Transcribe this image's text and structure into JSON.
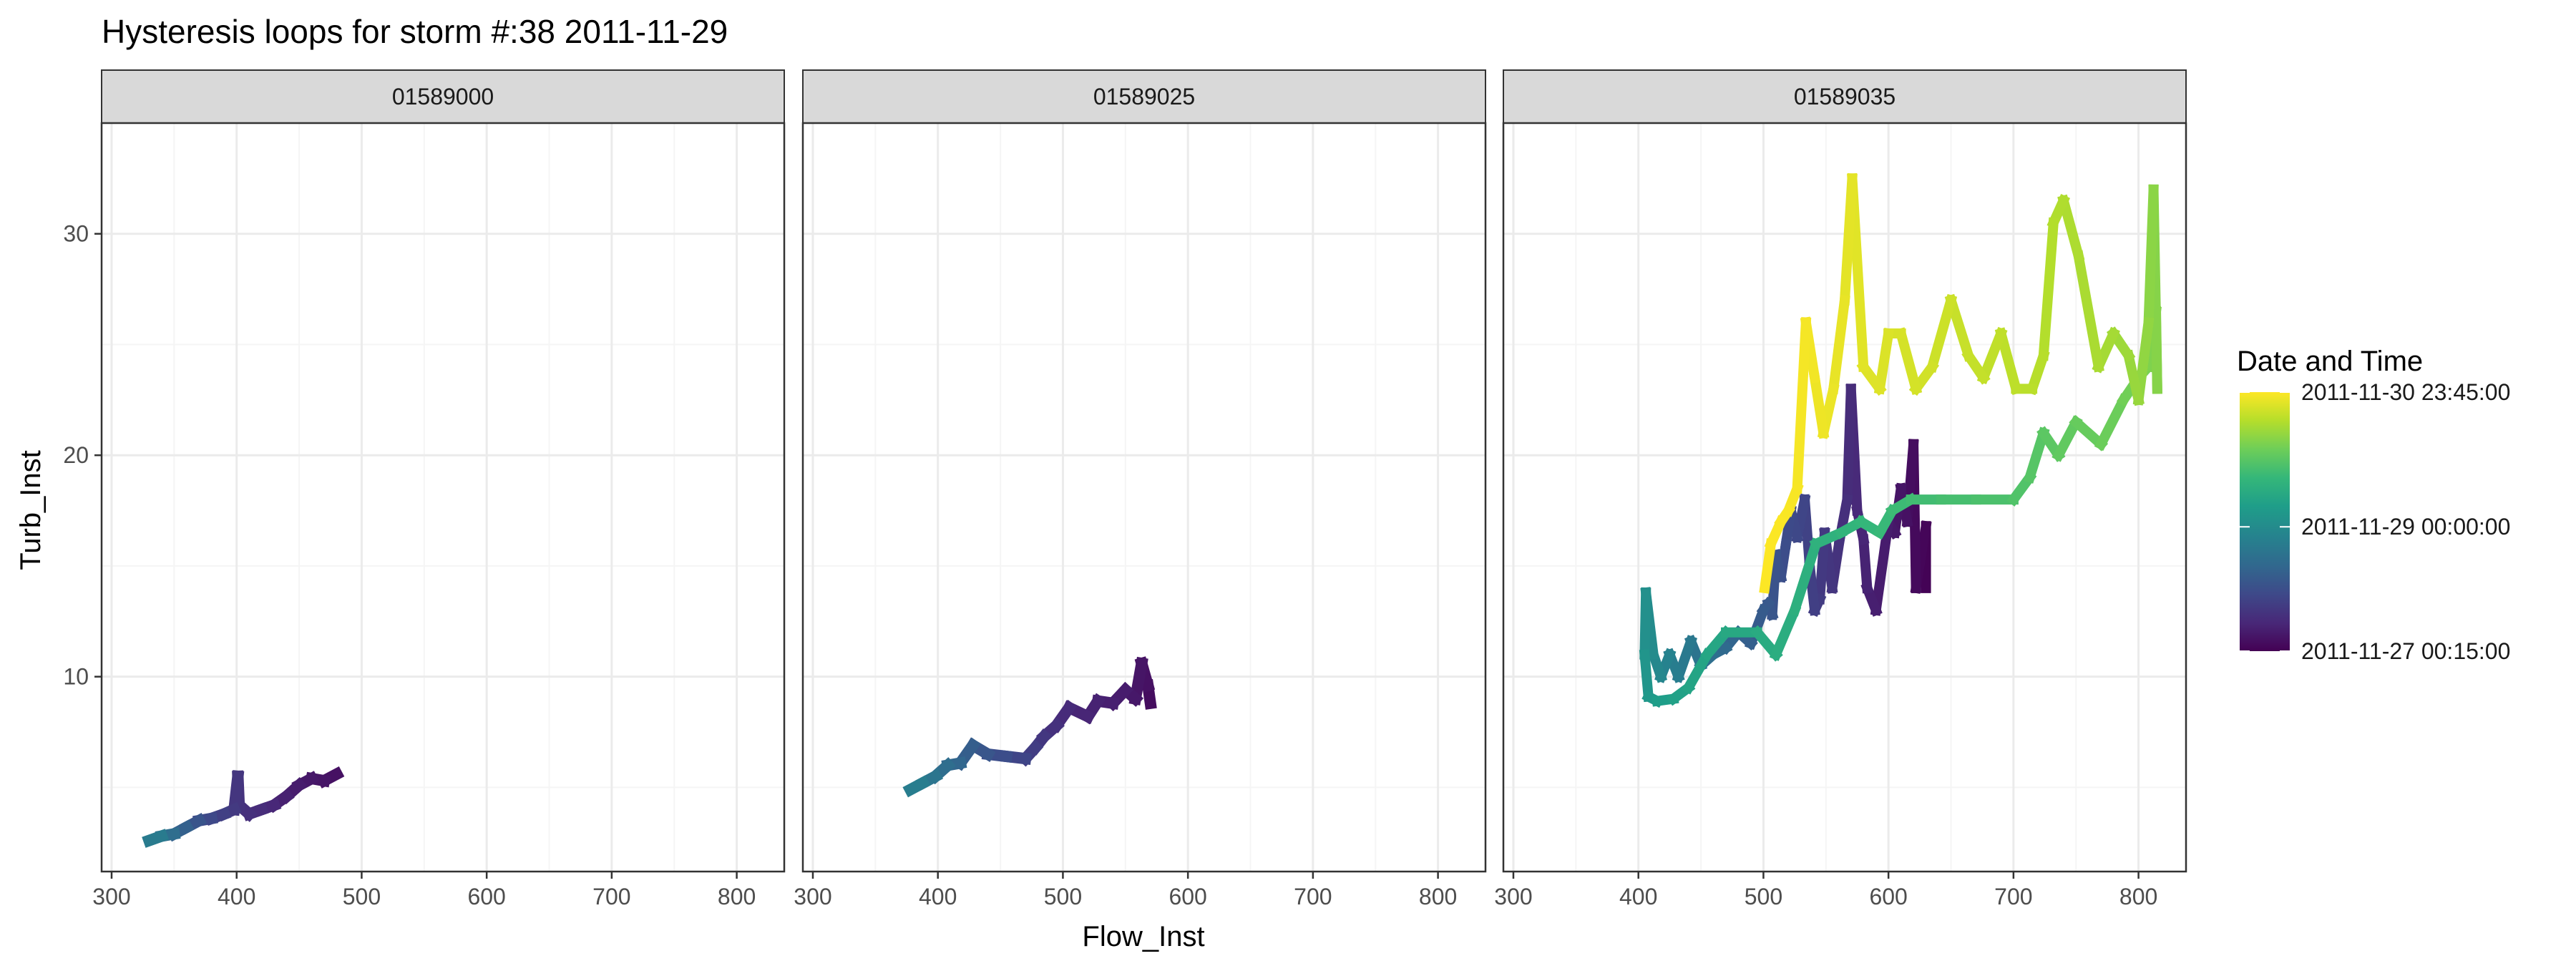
{
  "chart_data": {
    "type": "line",
    "title": "Hysteresis loops for storm #:38   2011-11-29",
    "xlabel": "Flow_Inst",
    "ylabel": "Turb_Inst",
    "xlim": [
      292,
      838
    ],
    "ylim": [
      1.2,
      35
    ],
    "x_ticks": [
      300,
      400,
      500,
      600,
      700,
      800
    ],
    "y_ticks": [
      10,
      20,
      30
    ],
    "grid": true,
    "colors": {
      "strip_fill": "#d9d9d9",
      "panel_border": "#333333",
      "grid_major": "#ebebeb",
      "grid_minor": "#f5f5f5"
    },
    "legend": {
      "title": "Date and Time",
      "position": "right",
      "labels": [
        "2011-11-30 23:45:00",
        "2011-11-29 00:00:00",
        "2011-11-27 00:15:00"
      ],
      "values": [
        1,
        0.48,
        0
      ],
      "colormap": "viridis"
    },
    "panels": [
      {
        "label": "01589000",
        "points": [
          [
            480,
            5.6,
            0.04
          ],
          [
            470,
            5.3,
            0.05
          ],
          [
            460,
            5.4,
            0.06
          ],
          [
            450,
            5.1,
            0.07
          ],
          [
            440,
            4.6,
            0.08
          ],
          [
            430,
            4.2,
            0.1
          ],
          [
            420,
            4.0,
            0.12
          ],
          [
            410,
            3.8,
            0.13
          ],
          [
            402,
            4.2,
            0.14
          ],
          [
            401,
            5.5,
            0.15
          ],
          [
            398,
            4.0,
            0.16
          ],
          [
            390,
            3.8,
            0.18
          ],
          [
            380,
            3.6,
            0.2
          ],
          [
            370,
            3.5,
            0.24
          ],
          [
            360,
            3.2,
            0.28
          ],
          [
            350,
            2.9,
            0.33
          ],
          [
            340,
            2.8,
            0.38
          ],
          [
            330,
            2.6,
            0.44
          ]
        ]
      },
      {
        "label": "01589025",
        "points": [
          [
            570,
            8.8,
            0.03
          ],
          [
            568,
            9.6,
            0.04
          ],
          [
            563,
            10.6,
            0.05
          ],
          [
            558,
            9.0,
            0.06
          ],
          [
            550,
            9.4,
            0.07
          ],
          [
            540,
            8.8,
            0.08
          ],
          [
            528,
            8.9,
            0.09
          ],
          [
            520,
            8.2,
            0.1
          ],
          [
            505,
            8.6,
            0.11
          ],
          [
            495,
            7.8,
            0.13
          ],
          [
            485,
            7.3,
            0.15
          ],
          [
            478,
            6.8,
            0.17
          ],
          [
            470,
            6.3,
            0.19
          ],
          [
            455,
            6.4,
            0.22
          ],
          [
            440,
            6.5,
            0.25
          ],
          [
            428,
            6.9,
            0.28
          ],
          [
            418,
            6.1,
            0.31
          ],
          [
            408,
            6.0,
            0.34
          ],
          [
            398,
            5.5,
            0.37
          ],
          [
            388,
            5.2,
            0.4
          ],
          [
            378,
            4.9,
            0.44
          ]
        ]
      },
      {
        "label": "01589035",
        "points": [
          [
            630,
            14.0,
            0.0
          ],
          [
            630,
            16.8,
            0.01
          ],
          [
            622,
            14.0,
            0.02
          ],
          [
            620,
            20.5,
            0.03
          ],
          [
            615,
            17.0,
            0.04
          ],
          [
            610,
            18.5,
            0.05
          ],
          [
            605,
            16.5,
            0.06
          ],
          [
            600,
            17.0,
            0.07
          ],
          [
            590,
            13.0,
            0.08
          ],
          [
            583,
            14.0,
            0.09
          ],
          [
            580,
            16.2,
            0.1
          ],
          [
            575,
            17.5,
            0.11
          ],
          [
            570,
            23.0,
            0.12
          ],
          [
            567,
            18.0,
            0.13
          ],
          [
            561,
            16.2,
            0.14
          ],
          [
            555,
            14.0,
            0.15
          ],
          [
            549,
            16.5,
            0.16
          ],
          [
            545,
            13.5,
            0.17
          ],
          [
            541,
            13.0,
            0.18
          ],
          [
            537,
            15.0,
            0.19
          ],
          [
            533,
            18.0,
            0.2
          ],
          [
            527,
            16.3,
            0.21
          ],
          [
            522,
            17.5,
            0.22
          ],
          [
            518,
            16.0,
            0.23
          ],
          [
            514,
            14.5,
            0.24
          ],
          [
            510,
            15.5,
            0.25
          ],
          [
            507,
            12.8,
            0.26
          ],
          [
            504,
            13.3,
            0.27
          ],
          [
            500,
            13.0,
            0.28
          ],
          [
            490,
            11.5,
            0.29
          ],
          [
            480,
            12.0,
            0.31
          ],
          [
            470,
            11.3,
            0.33
          ],
          [
            460,
            11.0,
            0.35
          ],
          [
            450,
            10.5,
            0.37
          ],
          [
            442,
            11.6,
            0.39
          ],
          [
            432,
            10.0,
            0.41
          ],
          [
            425,
            11.0,
            0.43
          ],
          [
            418,
            10.0,
            0.45
          ],
          [
            412,
            11.0,
            0.47
          ],
          [
            406,
            13.8,
            0.49
          ],
          [
            405,
            11.0,
            0.51
          ],
          [
            408,
            9.1,
            0.53
          ],
          [
            415,
            8.9,
            0.55
          ],
          [
            428,
            9.0,
            0.57
          ],
          [
            440,
            9.5,
            0.58
          ],
          [
            455,
            11.0,
            0.59
          ],
          [
            470,
            12.0,
            0.6
          ],
          [
            495,
            12.0,
            0.61
          ],
          [
            510,
            11.0,
            0.62
          ],
          [
            525,
            13.0,
            0.63
          ],
          [
            542,
            16.0,
            0.64
          ],
          [
            562,
            16.5,
            0.65
          ],
          [
            578,
            17.0,
            0.66
          ],
          [
            593,
            16.5,
            0.67
          ],
          [
            603,
            17.5,
            0.68
          ],
          [
            618,
            18.0,
            0.69
          ],
          [
            642,
            18.0,
            0.7
          ],
          [
            670,
            18.0,
            0.71
          ],
          [
            700,
            18.0,
            0.72
          ],
          [
            713,
            19.0,
            0.73
          ],
          [
            724,
            21.0,
            0.74
          ],
          [
            736,
            20.0,
            0.75
          ],
          [
            750,
            21.5,
            0.76
          ],
          [
            770,
            20.5,
            0.77
          ],
          [
            788,
            22.5,
            0.78
          ],
          [
            800,
            23.5,
            0.79
          ],
          [
            808,
            24.0,
            0.8
          ],
          [
            814,
            26.5,
            0.81
          ],
          [
            815,
            23.0,
            0.815
          ],
          [
            812,
            32.0,
            0.82
          ],
          [
            808,
            26.0,
            0.83
          ],
          [
            800,
            22.5,
            0.84
          ],
          [
            792,
            24.5,
            0.85
          ],
          [
            780,
            25.5,
            0.86
          ],
          [
            768,
            24.0,
            0.87
          ],
          [
            752,
            29.0,
            0.875
          ],
          [
            740,
            31.5,
            0.88
          ],
          [
            732,
            30.5,
            0.885
          ],
          [
            724,
            24.5,
            0.89
          ],
          [
            715,
            23.0,
            0.895
          ],
          [
            702,
            23.0,
            0.9
          ],
          [
            690,
            25.5,
            0.905
          ],
          [
            676,
            23.5,
            0.91
          ],
          [
            664,
            24.5,
            0.915
          ],
          [
            650,
            27.0,
            0.92
          ],
          [
            635,
            24.0,
            0.93
          ],
          [
            622,
            23.0,
            0.935
          ],
          [
            610,
            25.5,
            0.94
          ],
          [
            600,
            25.5,
            0.945
          ],
          [
            593,
            23.0,
            0.95
          ],
          [
            580,
            24.0,
            0.955
          ],
          [
            571,
            32.5,
            0.96
          ],
          [
            565,
            27.0,
            0.965
          ],
          [
            556,
            23.0,
            0.97
          ],
          [
            548,
            21.0,
            0.975
          ],
          [
            541,
            23.5,
            0.98
          ],
          [
            534,
            26.0,
            0.985
          ],
          [
            527,
            18.5,
            0.99
          ],
          [
            520,
            17.5,
            0.993
          ],
          [
            514,
            17.0,
            0.996
          ],
          [
            506,
            16.0,
            0.998
          ],
          [
            501,
            14.0,
            1.0
          ]
        ]
      }
    ]
  }
}
